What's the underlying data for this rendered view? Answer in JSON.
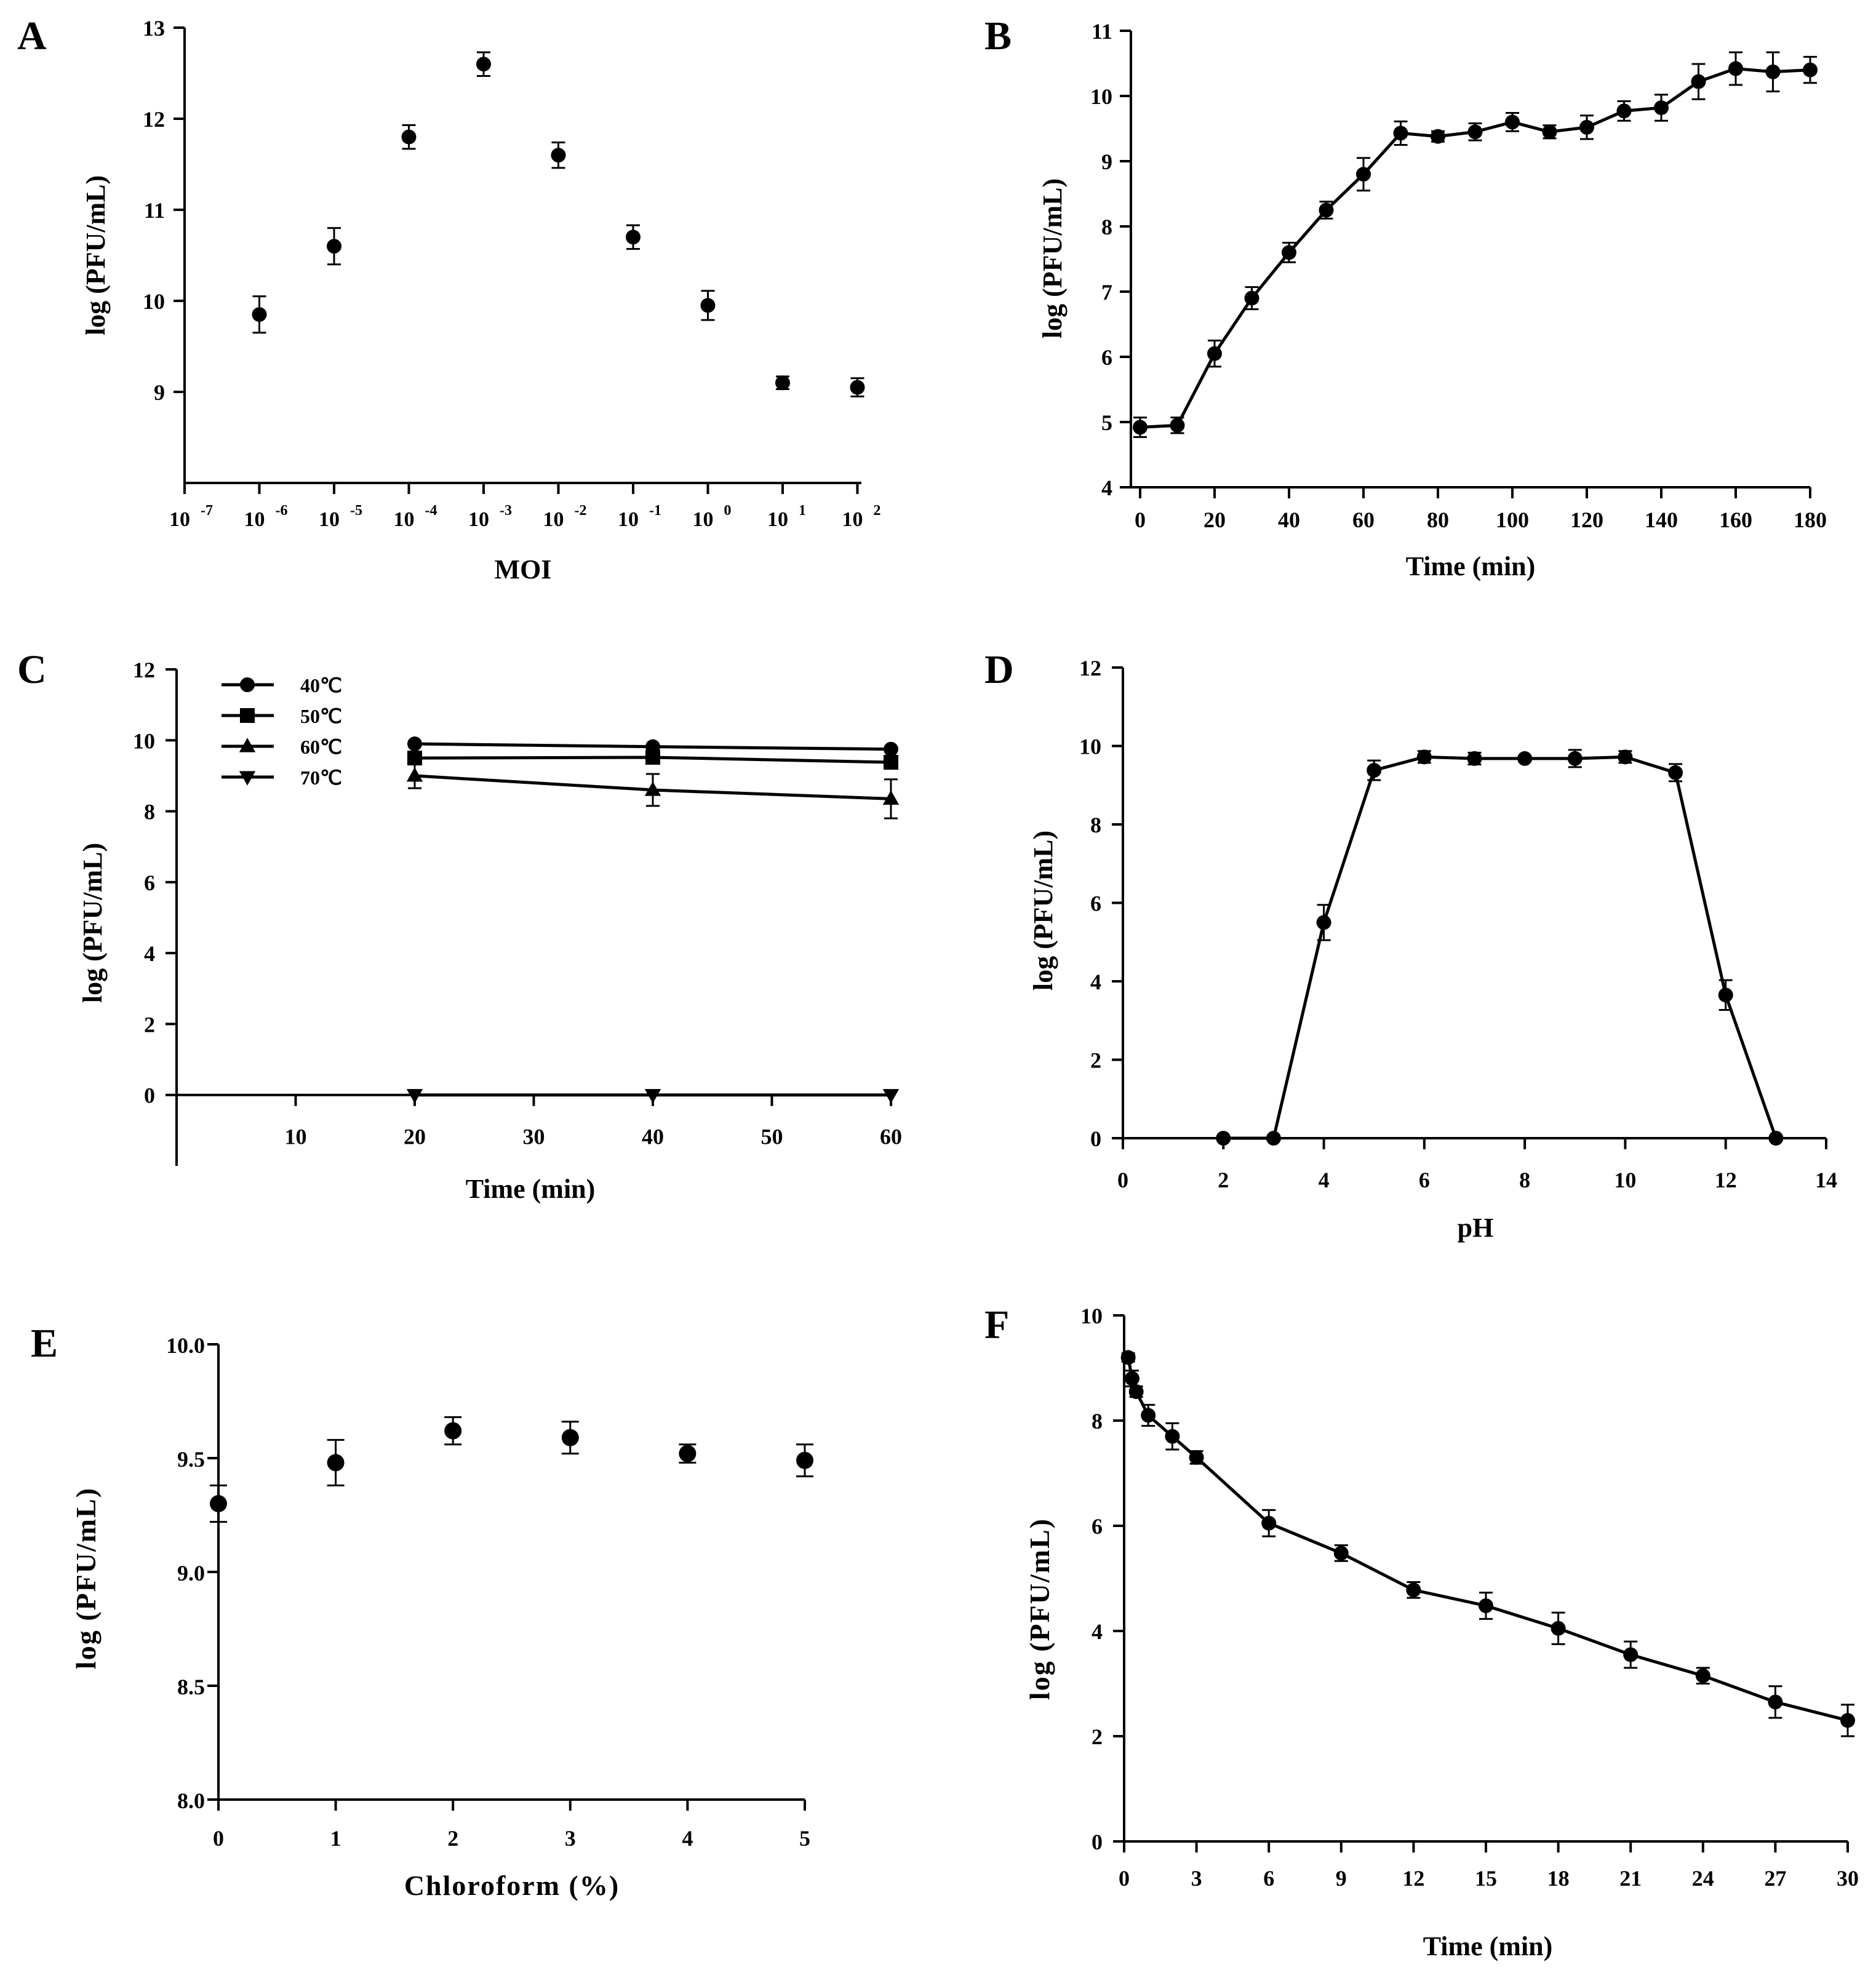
{
  "colors": {
    "ink": "#000000",
    "background": "#ffffff"
  },
  "chart_data": [
    {
      "panel": "A",
      "type": "scatter",
      "xlabel": "MOI",
      "ylabel": "log (PFU/mL)",
      "x_scale": "log10",
      "x_tick_labels": [
        "10-7",
        "10-6",
        "10-5",
        "10-4",
        "10-3",
        "10-2",
        "10-1",
        "100",
        "101",
        "102"
      ],
      "y_ticks": [
        "9",
        "10",
        "11",
        "12",
        "13"
      ],
      "ylim": [
        8,
        13
      ],
      "series": [
        {
          "x": [
            "1e-6",
            "1e-5",
            "1e-4",
            "1e-3",
            "1e-2",
            "1e-1",
            "1",
            "10",
            "100"
          ],
          "y": [
            9.85,
            10.6,
            11.8,
            12.6,
            11.6,
            10.7,
            9.95,
            9.1,
            9.05
          ],
          "err": [
            0.2,
            0.2,
            0.13,
            0.13,
            0.14,
            0.13,
            0.16,
            0.07,
            0.1
          ]
        }
      ]
    },
    {
      "panel": "B",
      "type": "line",
      "xlabel": "Time (min)",
      "ylabel": "log (PFU/mL)",
      "x_ticks": [
        "0",
        "20",
        "40",
        "60",
        "80",
        "100",
        "120",
        "140",
        "160",
        "180"
      ],
      "y_ticks": [
        "4",
        "5",
        "6",
        "7",
        "8",
        "9",
        "10",
        "11"
      ],
      "xlim": [
        0,
        180
      ],
      "ylim": [
        4,
        11
      ],
      "series": [
        {
          "x": [
            0,
            10,
            20,
            30,
            40,
            50,
            60,
            70,
            80,
            90,
            100,
            110,
            120,
            130,
            140,
            150,
            160,
            170,
            180
          ],
          "y": [
            4.92,
            4.95,
            6.05,
            6.9,
            7.6,
            8.25,
            8.8,
            9.43,
            9.38,
            9.45,
            9.6,
            9.45,
            9.52,
            9.77,
            9.82,
            10.22,
            10.42,
            10.37,
            10.4
          ],
          "err": [
            0.15,
            0.12,
            0.2,
            0.17,
            0.15,
            0.13,
            0.25,
            0.18,
            0.08,
            0.13,
            0.14,
            0.1,
            0.18,
            0.15,
            0.2,
            0.27,
            0.25,
            0.3,
            0.2
          ]
        }
      ]
    },
    {
      "panel": "C",
      "type": "line",
      "xlabel": "Time (min)",
      "ylabel": "log (PFU/mL)",
      "x_ticks": [
        "10",
        "20",
        "30",
        "40",
        "50",
        "60"
      ],
      "y_ticks": [
        "0",
        "2",
        "4",
        "6",
        "8",
        "10",
        "12"
      ],
      "xlim": [
        0,
        60
      ],
      "ylim": [
        -2,
        12
      ],
      "legend": "top-left",
      "series": [
        {
          "name": "40℃",
          "marker": "circle",
          "x": [
            20,
            40,
            60
          ],
          "y": [
            9.9,
            9.82,
            9.75
          ],
          "err": [
            0.05,
            0.05,
            0.05
          ]
        },
        {
          "name": "50℃",
          "marker": "square",
          "x": [
            20,
            40,
            60
          ],
          "y": [
            9.5,
            9.52,
            9.38
          ],
          "err": [
            0.08,
            0.08,
            0.08
          ]
        },
        {
          "name": "60℃",
          "marker": "triangle-up",
          "x": [
            20,
            40,
            60
          ],
          "y": [
            9.0,
            8.6,
            8.35
          ],
          "err": [
            0.35,
            0.45,
            0.55
          ]
        },
        {
          "name": "70℃",
          "marker": "triangle-down",
          "x": [
            20,
            40,
            60
          ],
          "y": [
            0,
            0,
            0
          ],
          "err": [
            0,
            0,
            0
          ]
        }
      ]
    },
    {
      "panel": "D",
      "type": "line",
      "xlabel": "pH",
      "ylabel": "log (PFU/mL)",
      "x_ticks": [
        "0",
        "2",
        "4",
        "6",
        "8",
        "10",
        "12",
        "14"
      ],
      "y_ticks": [
        "0",
        "2",
        "4",
        "6",
        "8",
        "10",
        "12"
      ],
      "xlim": [
        0,
        14
      ],
      "ylim": [
        0,
        12
      ],
      "series": [
        {
          "x": [
            2,
            3,
            4,
            5,
            6,
            7,
            8,
            9,
            10,
            11,
            12,
            13
          ],
          "y": [
            0,
            0,
            5.5,
            9.38,
            9.72,
            9.68,
            9.68,
            9.68,
            9.72,
            9.32,
            3.65,
            0
          ],
          "err": [
            0,
            0,
            0.45,
            0.25,
            0.15,
            0.15,
            0.07,
            0.22,
            0.15,
            0.22,
            0.38,
            0
          ]
        }
      ]
    },
    {
      "panel": "E",
      "type": "scatter",
      "xlabel": "Chloroform (%)",
      "ylabel": "log (PFU/mL)",
      "x_ticks": [
        "0",
        "1",
        "2",
        "3",
        "4",
        "5"
      ],
      "y_ticks": [
        "8.0",
        "8.5",
        "9.0",
        "9.5",
        "10.0"
      ],
      "xlim": [
        0,
        5
      ],
      "ylim": [
        8.0,
        10.0
      ],
      "series": [
        {
          "x": [
            0,
            1,
            2,
            3,
            4,
            5
          ],
          "y": [
            9.3,
            9.48,
            9.62,
            9.59,
            9.52,
            9.49
          ],
          "err": [
            0.08,
            0.1,
            0.06,
            0.07,
            0.04,
            0.07
          ]
        }
      ]
    },
    {
      "panel": "F",
      "type": "line",
      "xlabel": "Time (min)",
      "ylabel": "log (PFU/mL)",
      "x_ticks": [
        "0",
        "3",
        "6",
        "9",
        "12",
        "15",
        "18",
        "21",
        "24",
        "27",
        "30"
      ],
      "y_ticks": [
        "0",
        "2",
        "4",
        "6",
        "8",
        "10"
      ],
      "xlim": [
        0,
        30
      ],
      "ylim": [
        0,
        10
      ],
      "series": [
        {
          "x": [
            0.17,
            0.33,
            0.5,
            1,
            2,
            3,
            6,
            9,
            12,
            15,
            18,
            21,
            24,
            27,
            30
          ],
          "y": [
            9.2,
            8.8,
            8.55,
            8.1,
            7.7,
            7.3,
            6.05,
            5.48,
            4.78,
            4.48,
            4.05,
            3.55,
            3.15,
            2.65,
            2.3
          ],
          "err": [
            0.08,
            0.15,
            0.1,
            0.2,
            0.25,
            0.12,
            0.25,
            0.15,
            0.15,
            0.25,
            0.3,
            0.25,
            0.15,
            0.3,
            0.3
          ]
        }
      ]
    }
  ]
}
